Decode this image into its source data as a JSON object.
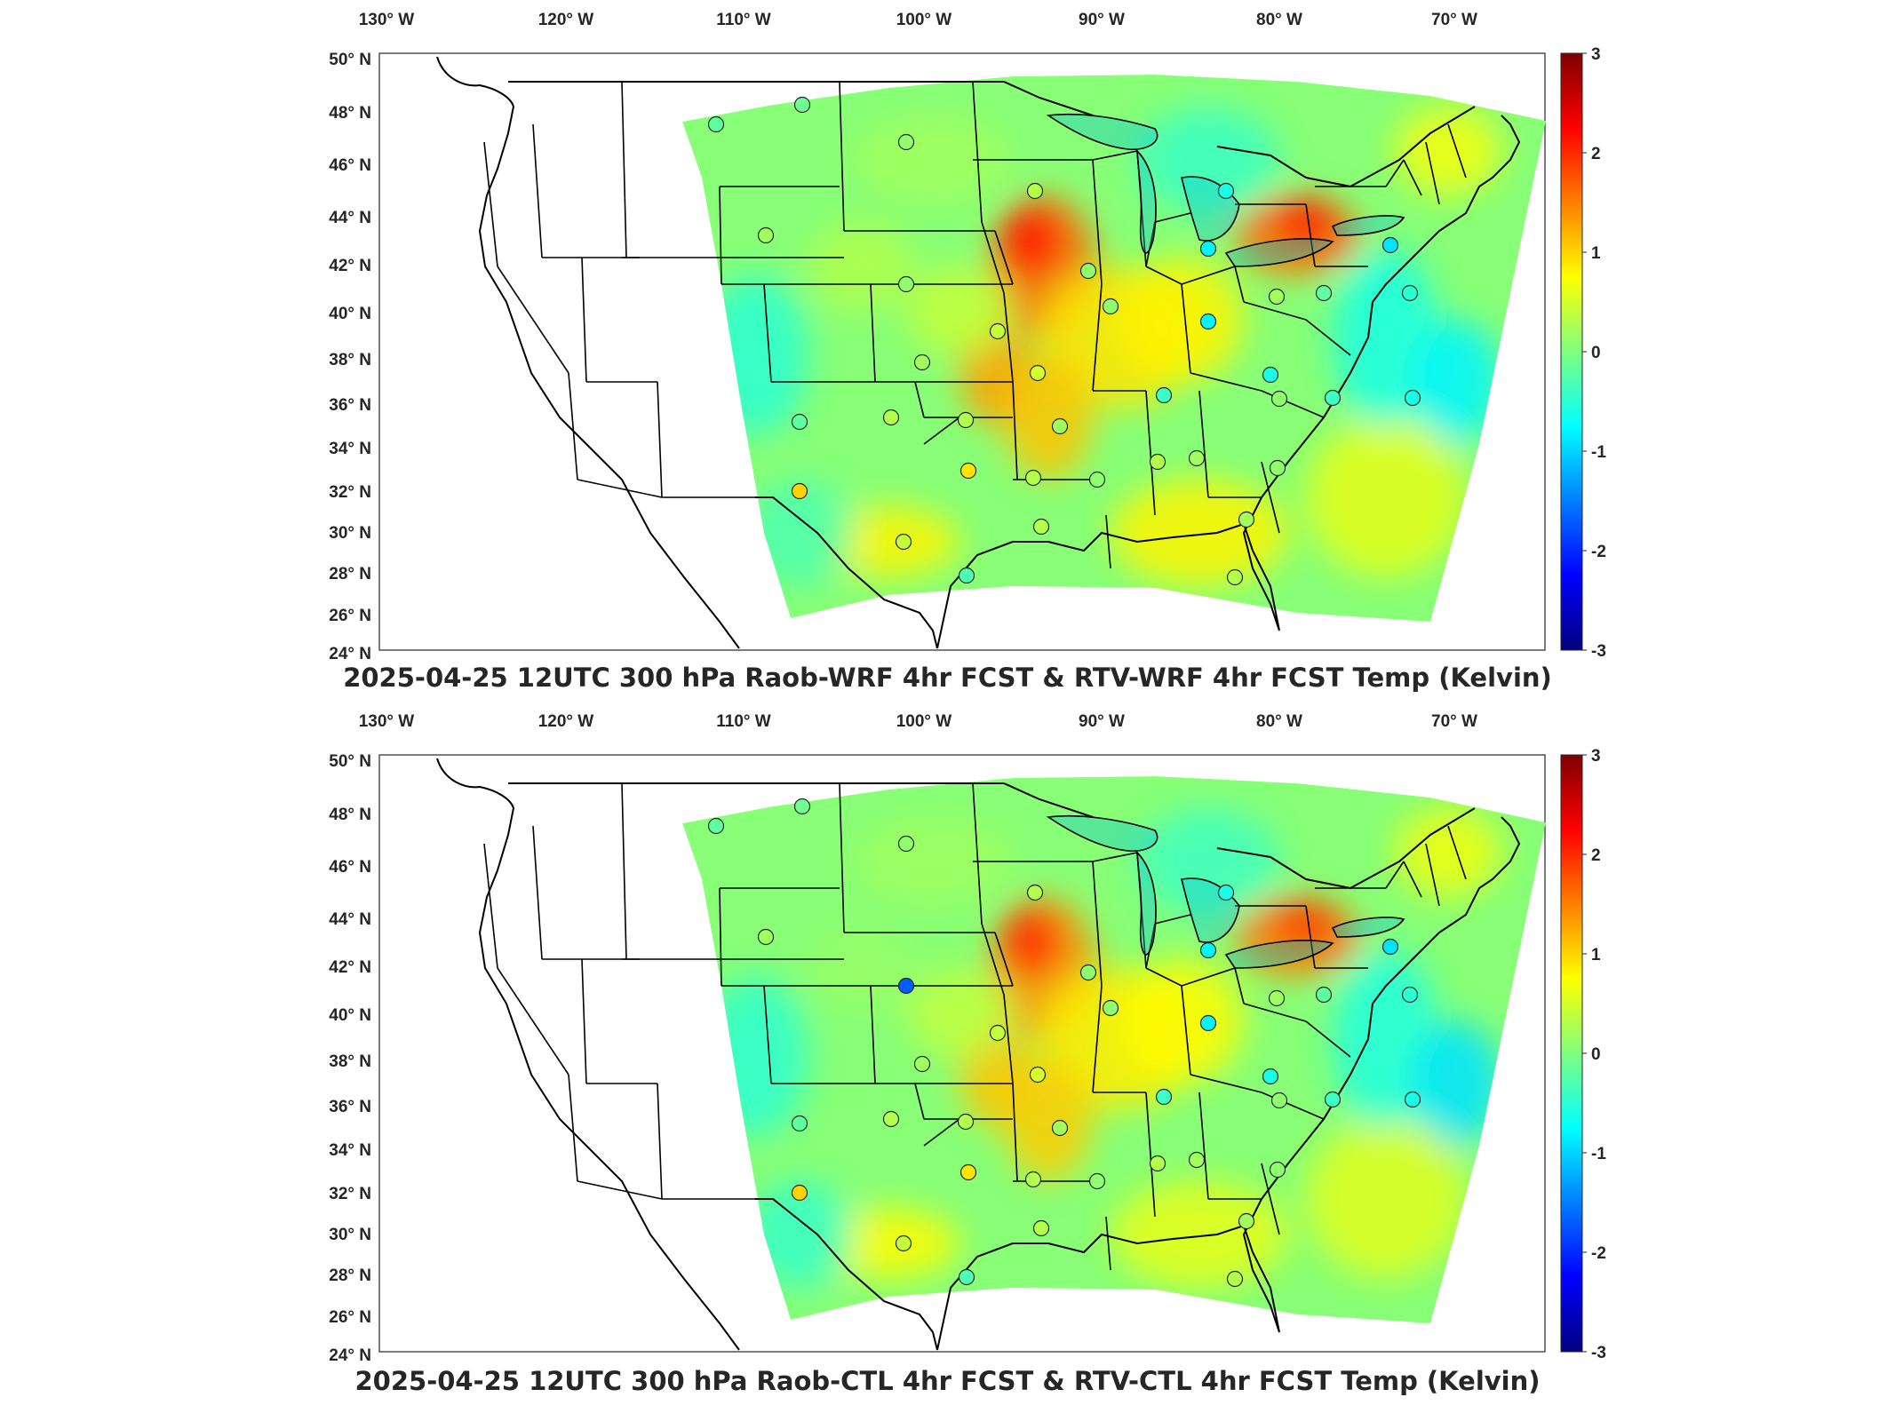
{
  "colorbar": {
    "ticks": [
      "3",
      "2",
      "1",
      "0",
      "-1",
      "-2",
      "-3"
    ],
    "colormap": [
      "#00007f",
      "#0000ff",
      "#007fff",
      "#00ffff",
      "#7fff7f",
      "#ffff00",
      "#ff7f00",
      "#ff0000",
      "#7f0000"
    ]
  },
  "axes": {
    "lon_labels": [
      "130",
      "120",
      "110",
      "100",
      "90",
      "80",
      "70"
    ],
    "lon_suffix": "W",
    "lat_labels": [
      "50",
      "48",
      "46",
      "44",
      "42",
      "40",
      "38",
      "36",
      "34",
      "32",
      "30",
      "28",
      "26",
      "24"
    ],
    "lat_suffix": "N",
    "degree_symbol": "°"
  },
  "panels": [
    {
      "title": "2025-04-25 12UTC 300 hPa Raob-WRF 4hr FCST & RTV-WRF 4hr FCST Temp (Kelvin)"
    },
    {
      "title": "2025-04-25 12UTC 300 hPa Raob-CTL 4hr FCST & RTV-CTL 4hr FCST Temp (Kelvin)"
    }
  ]
}
